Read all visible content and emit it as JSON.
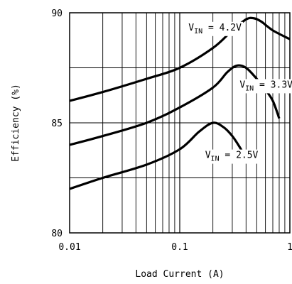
{
  "chart_data": {
    "type": "line",
    "title": "",
    "xlabel": "Load Current (A)",
    "ylabel": "Efficiency (%)",
    "x_scale": "log",
    "xlim": [
      0.01,
      1
    ],
    "ylim": [
      80,
      90
    ],
    "x_ticks": [
      {
        "value": 0.01,
        "label": "0.01"
      },
      {
        "value": 0.1,
        "label": "0.1"
      },
      {
        "value": 1,
        "label": "1"
      }
    ],
    "y_ticks": [
      {
        "value": 80,
        "label": "80"
      },
      {
        "value": 85,
        "label": "85"
      },
      {
        "value": 90,
        "label": "90"
      }
    ],
    "grid": true,
    "legend": "none",
    "series": [
      {
        "name": "V",
        "name_sub": "IN",
        "name_suffix": " = 4.2V",
        "x": [
          0.01,
          0.02,
          0.05,
          0.1,
          0.2,
          0.3,
          0.4,
          0.47,
          0.55,
          0.7,
          1.0
        ],
        "y": [
          86.0,
          86.4,
          87.0,
          87.5,
          88.4,
          89.2,
          89.7,
          89.75,
          89.6,
          89.2,
          88.8
        ]
      },
      {
        "name": "V",
        "name_sub": "IN",
        "name_suffix": " = 3.3V",
        "x": [
          0.01,
          0.02,
          0.05,
          0.1,
          0.2,
          0.27,
          0.33,
          0.4,
          0.5,
          0.6,
          0.7,
          0.8
        ],
        "y": [
          84.0,
          84.4,
          85.0,
          85.7,
          86.6,
          87.3,
          87.6,
          87.5,
          87.0,
          86.5,
          86.0,
          85.2
        ]
      },
      {
        "name": "V",
        "name_sub": "IN",
        "name_suffix": " = 2.5V",
        "x": [
          0.01,
          0.02,
          0.05,
          0.1,
          0.15,
          0.2,
          0.25,
          0.3,
          0.35,
          0.4,
          0.42,
          0.5
        ],
        "y": [
          82.0,
          82.5,
          83.1,
          83.8,
          84.6,
          85.0,
          84.8,
          84.4,
          83.9,
          83.4,
          83.3,
          83.3
        ]
      }
    ]
  }
}
